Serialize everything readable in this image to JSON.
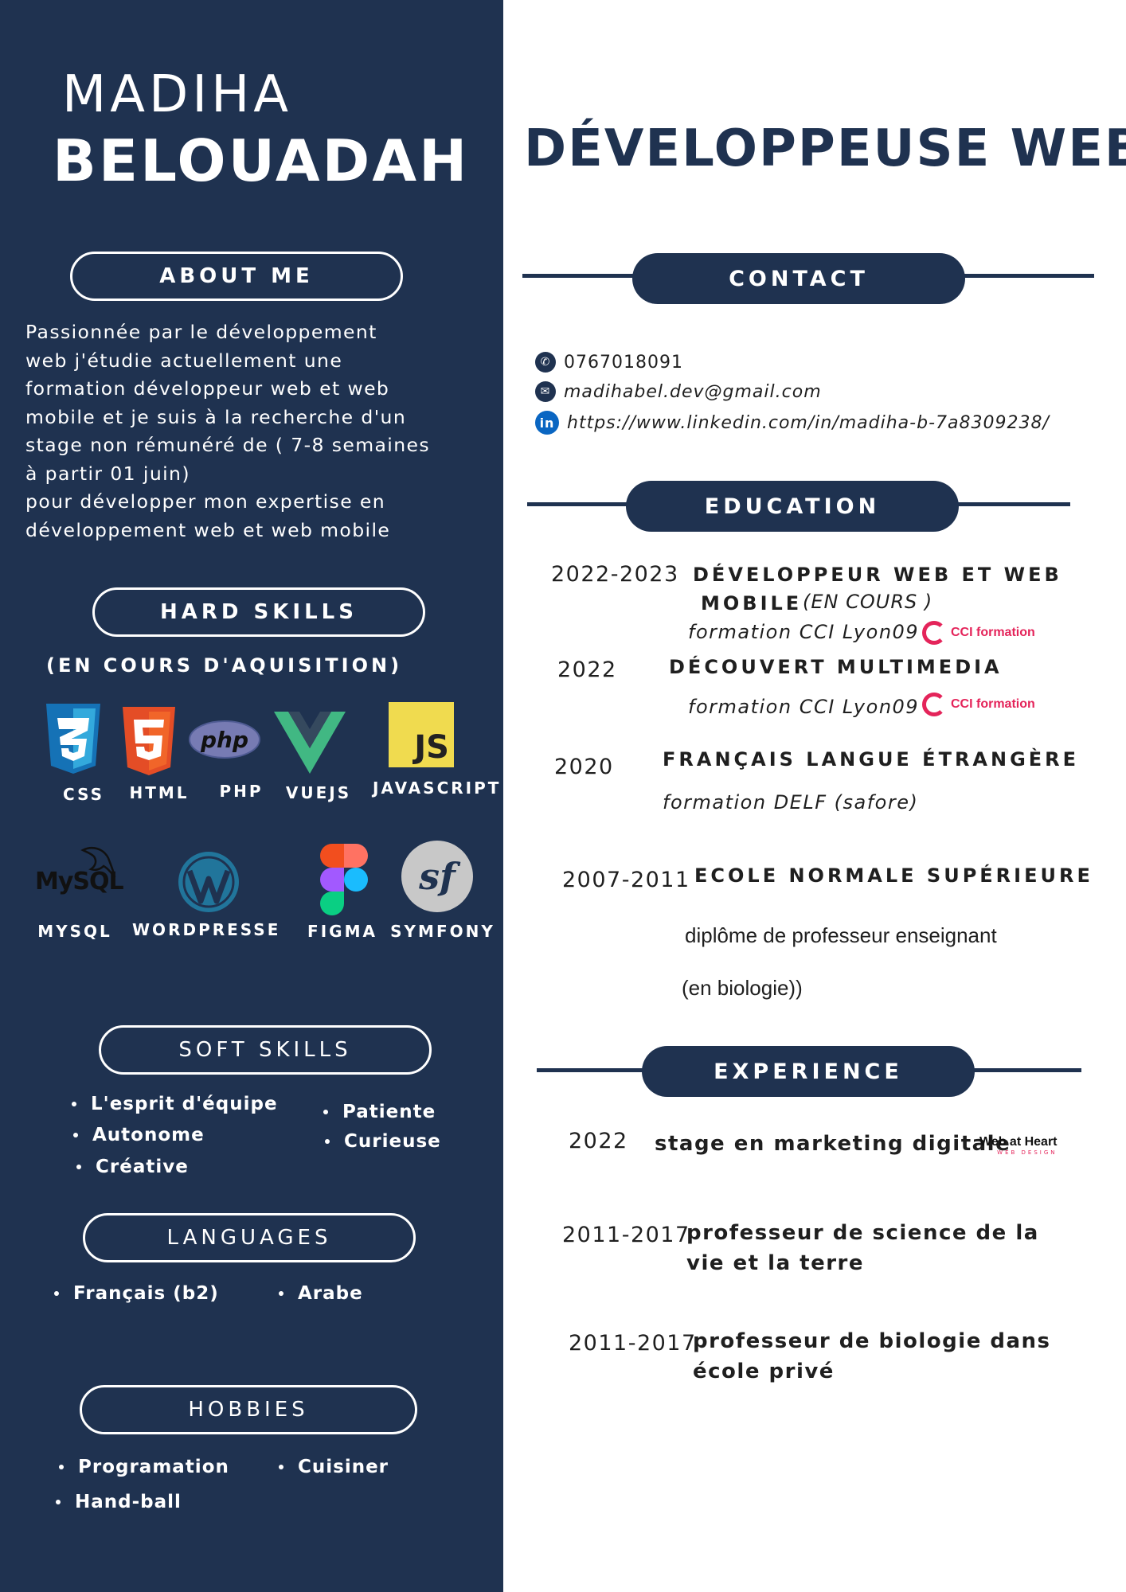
{
  "name": {
    "first": "MADIHA",
    "last": "BELOUADAH"
  },
  "job_title": "DÉVELOPPEUSE WEB",
  "about": {
    "heading": "ABOUT ME",
    "text": "  Passionnée par le développement\nweb j'étudie actuellement une\nformation développeur web et web\nmobile et je suis à la recherche d'un\nstage non rémunéré de ( 7-8 semaines\nà partir 01 juin)\n pour développer mon expertise en\ndéveloppement web et web mobile"
  },
  "hard_skills": {
    "heading": "HARD SKILLS",
    "subheading": "(EN COURS D'AQUISITION)",
    "row1": [
      {
        "label": "CSS",
        "icon": "css3-icon"
      },
      {
        "label": "HTML",
        "icon": "html5-icon"
      },
      {
        "label": "PHP",
        "icon": "php-icon"
      },
      {
        "label": "VUEJS",
        "icon": "vuejs-icon"
      },
      {
        "label": "JAVASCRIPT",
        "icon": "javascript-icon"
      }
    ],
    "row2": [
      {
        "label": "MYSQL",
        "icon": "mysql-icon"
      },
      {
        "label": "WORDPRESSE",
        "icon": "wordpress-icon"
      },
      {
        "label": "FIGMA",
        "icon": "figma-icon"
      },
      {
        "label": "SYMFONY",
        "icon": "symfony-icon"
      }
    ],
    "icon_text": {
      "php": "php",
      "js": "JS",
      "mysql": "MySQL",
      "sf": "sf"
    }
  },
  "soft_skills": {
    "heading": "SOFT SKILLS",
    "left": [
      "L'esprit d'équipe",
      "Autonome",
      "Créative"
    ],
    "right": [
      "Patiente",
      "Curieuse"
    ]
  },
  "languages": {
    "heading": "LANGUAGES",
    "items": [
      "Français (b2)",
      "Arabe"
    ]
  },
  "hobbies": {
    "heading": "HOBBIES",
    "items": [
      "Programation",
      "Cuisiner",
      "Hand-ball"
    ]
  },
  "contact": {
    "heading": "CONTACT",
    "phone": "0767018091",
    "email": "madihabel.dev@gmail.com",
    "linkedin": "https://www.linkedin.com/in/madiha-b-7a8309238/",
    "linkedin_icon_text": "in"
  },
  "education": {
    "heading": "EDUCATION",
    "items": [
      {
        "year": "2022-2023",
        "title_line1": "DÉVELOPPEUR WEB ET WEB",
        "title_line2": "MOBILE",
        "status": "(EN COURS )",
        "school": "formation  CCI Lyon09",
        "logo_text": "CCI formation"
      },
      {
        "year": "2022",
        "title": "DÉCOUVERT MULTIMEDIA",
        "school": "formation  CCI Lyon09",
        "logo_text": "CCI formation"
      },
      {
        "year": "2020",
        "title": "FRANÇAIS LANGUE ÉTRANGÈRE",
        "school": "formation DELF (safore)"
      },
      {
        "year": "2007-2011",
        "title": "ECOLE NORMALE SUPÉRIEURE",
        "line1": "diplôme de professeur enseignant",
        "line2": "(en biologie))"
      }
    ]
  },
  "experience": {
    "heading": "EXPERIENCE",
    "items": [
      {
        "year": "2022",
        "title": "stage en marketing digitale",
        "logo_main": "Web at Heart",
        "logo_sub": "WEB DESIGN"
      },
      {
        "year": "2011-2017",
        "title": "professeur de science de la vie et la terre"
      },
      {
        "year": "2011-2017",
        "title": "professeur de biologie dans école privé"
      }
    ]
  },
  "colors": {
    "navy": "#1f3250",
    "white": "#ffffff",
    "cci_pink": "#e4245a"
  }
}
